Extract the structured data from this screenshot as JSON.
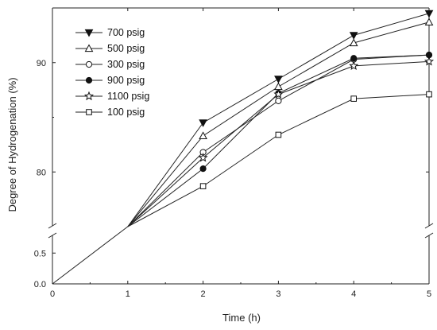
{
  "chart_data": {
    "type": "line",
    "xlabel": "Time (h)",
    "ylabel": "Degree of Hydrogenation (%)",
    "xlim": [
      0,
      5
    ],
    "x_ticks": [
      "0",
      "1",
      "2",
      "3",
      "4",
      "5"
    ],
    "y_ticks_lower": [
      "0.0",
      "0.5"
    ],
    "y_ticks_upper": [
      "80",
      "90"
    ],
    "y_axis_break": "between 0.5 and 80",
    "ylim_lower": [
      0,
      0.8
    ],
    "ylim_upper": [
      75,
      95
    ],
    "legend_position": "top-left",
    "grid": false,
    "origin_line": {
      "x": [
        0,
        1
      ],
      "y": [
        0,
        75
      ]
    },
    "series": [
      {
        "name": "700 psig",
        "marker": "triangle-down-filled",
        "x": [
          1,
          2,
          3,
          4,
          5
        ],
        "y": [
          75,
          84.5,
          88.5,
          92.5,
          94.5
        ]
      },
      {
        "name": "500 psig",
        "marker": "triangle-up-open",
        "x": [
          1,
          2,
          3,
          4,
          5
        ],
        "y": [
          75,
          83.3,
          87.8,
          91.8,
          93.7
        ]
      },
      {
        "name": "300 psig",
        "marker": "circle-open",
        "x": [
          1,
          2,
          3,
          4,
          5
        ],
        "y": [
          75,
          81.8,
          86.5,
          90.3,
          90.7
        ]
      },
      {
        "name": "900 psig",
        "marker": "circle-filled",
        "x": [
          1,
          2,
          3,
          4,
          5
        ],
        "y": [
          75,
          80.3,
          87.2,
          90.4,
          90.7
        ]
      },
      {
        "name": "1100 psig",
        "marker": "star-open",
        "x": [
          1,
          2,
          3,
          4,
          5
        ],
        "y": [
          75,
          81.3,
          87.1,
          89.7,
          90.1
        ]
      },
      {
        "name": "100 psig",
        "marker": "square-open",
        "x": [
          1,
          2,
          3,
          4,
          5
        ],
        "y": [
          75,
          78.7,
          83.4,
          86.7,
          87.1
        ]
      }
    ]
  }
}
